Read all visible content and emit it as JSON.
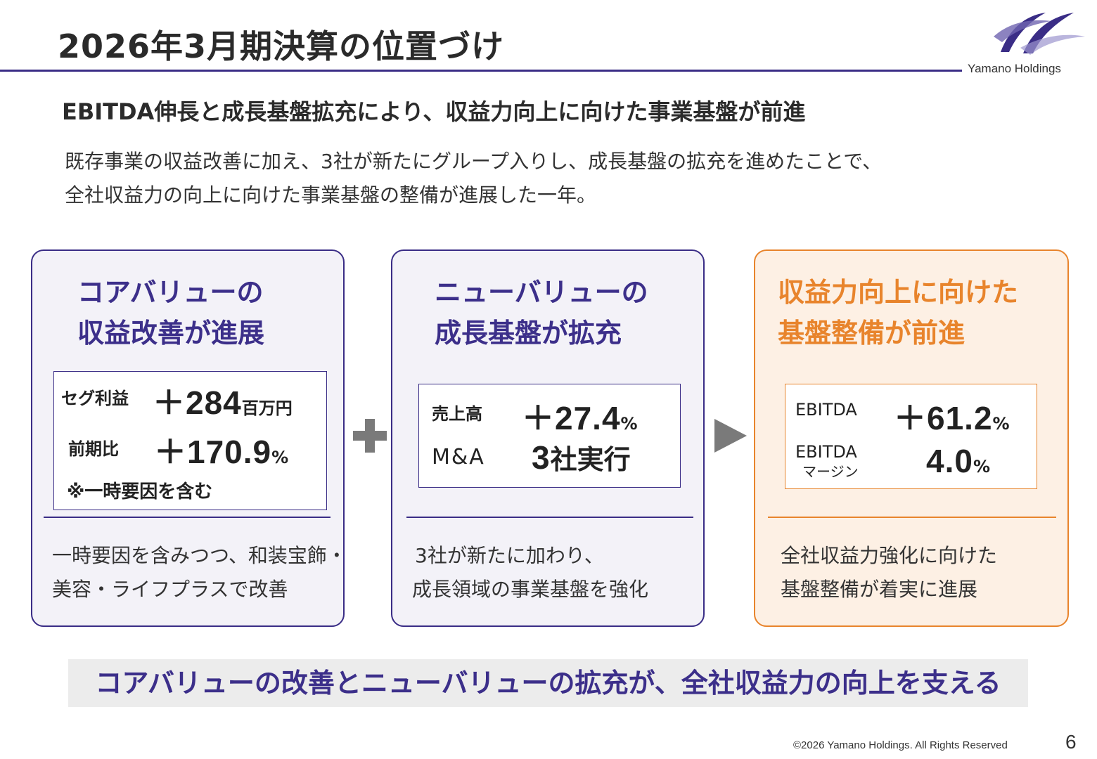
{
  "header": {
    "title": "2026年3月期決算の位置づけ",
    "logo_text": "Yamano Holdings"
  },
  "headline": "EBITDA伸長と成長基盤拡充により、収益力向上に向けた事業基盤が前進",
  "intro": {
    "line1": "既存事業の収益改善に加え、3社が新たにグループ入りし、成長基盤の拡充を進めたことで、",
    "line2": "全社収益力の向上に向けた事業基盤の整備が進展した一年。"
  },
  "cards": [
    {
      "title_line1": "コアバリューの",
      "title_line2": "収益改善が進展",
      "kpis": [
        {
          "label": "セグ利益",
          "value": "＋284",
          "unit": "百万円"
        },
        {
          "label": "前期比",
          "value": "＋170.9",
          "unit": "%"
        }
      ],
      "note": "※一時要因を含む",
      "desc_line1": "一時要因を含みつつ、和装宝飾・",
      "desc_line2": "美容・ライフプラスで改善"
    },
    {
      "title_line1": "ニューバリューの",
      "title_line2": "成長基盤が拡充",
      "kpis": [
        {
          "label": "売上高",
          "value": "＋27.4",
          "unit": "%"
        },
        {
          "label": "M&A",
          "value": "3",
          "unit": "社実行"
        }
      ],
      "desc_line1": "3社が新たに加わり、",
      "desc_line2": "成長領域の事業基盤を強化"
    },
    {
      "title_line1": "収益力向上に向けた",
      "title_line2": "基盤整備が前進",
      "kpis": [
        {
          "label": "EBITDA",
          "value": "＋61.2",
          "unit": "%"
        },
        {
          "label_line1": "EBITDA",
          "label_line2": "マージン",
          "value": "4.0",
          "unit": "%"
        }
      ],
      "desc_line1": "全社収益力強化に向けた",
      "desc_line2": "基盤整備が着実に進展"
    }
  ],
  "banner": "コアバリューの改善とニューバリューの拡充が、全社収益力の向上を支える",
  "footer": {
    "copyright": "©2026 Yamano Holdings. All Rights Reserved",
    "page_number": "6"
  },
  "colors": {
    "brand_purple": "#3a2d86",
    "accent_orange": "#e8842c",
    "card_bg": "#f3f2f8",
    "card3_bg": "#fdf0e4",
    "banner_bg": "#ececec"
  }
}
